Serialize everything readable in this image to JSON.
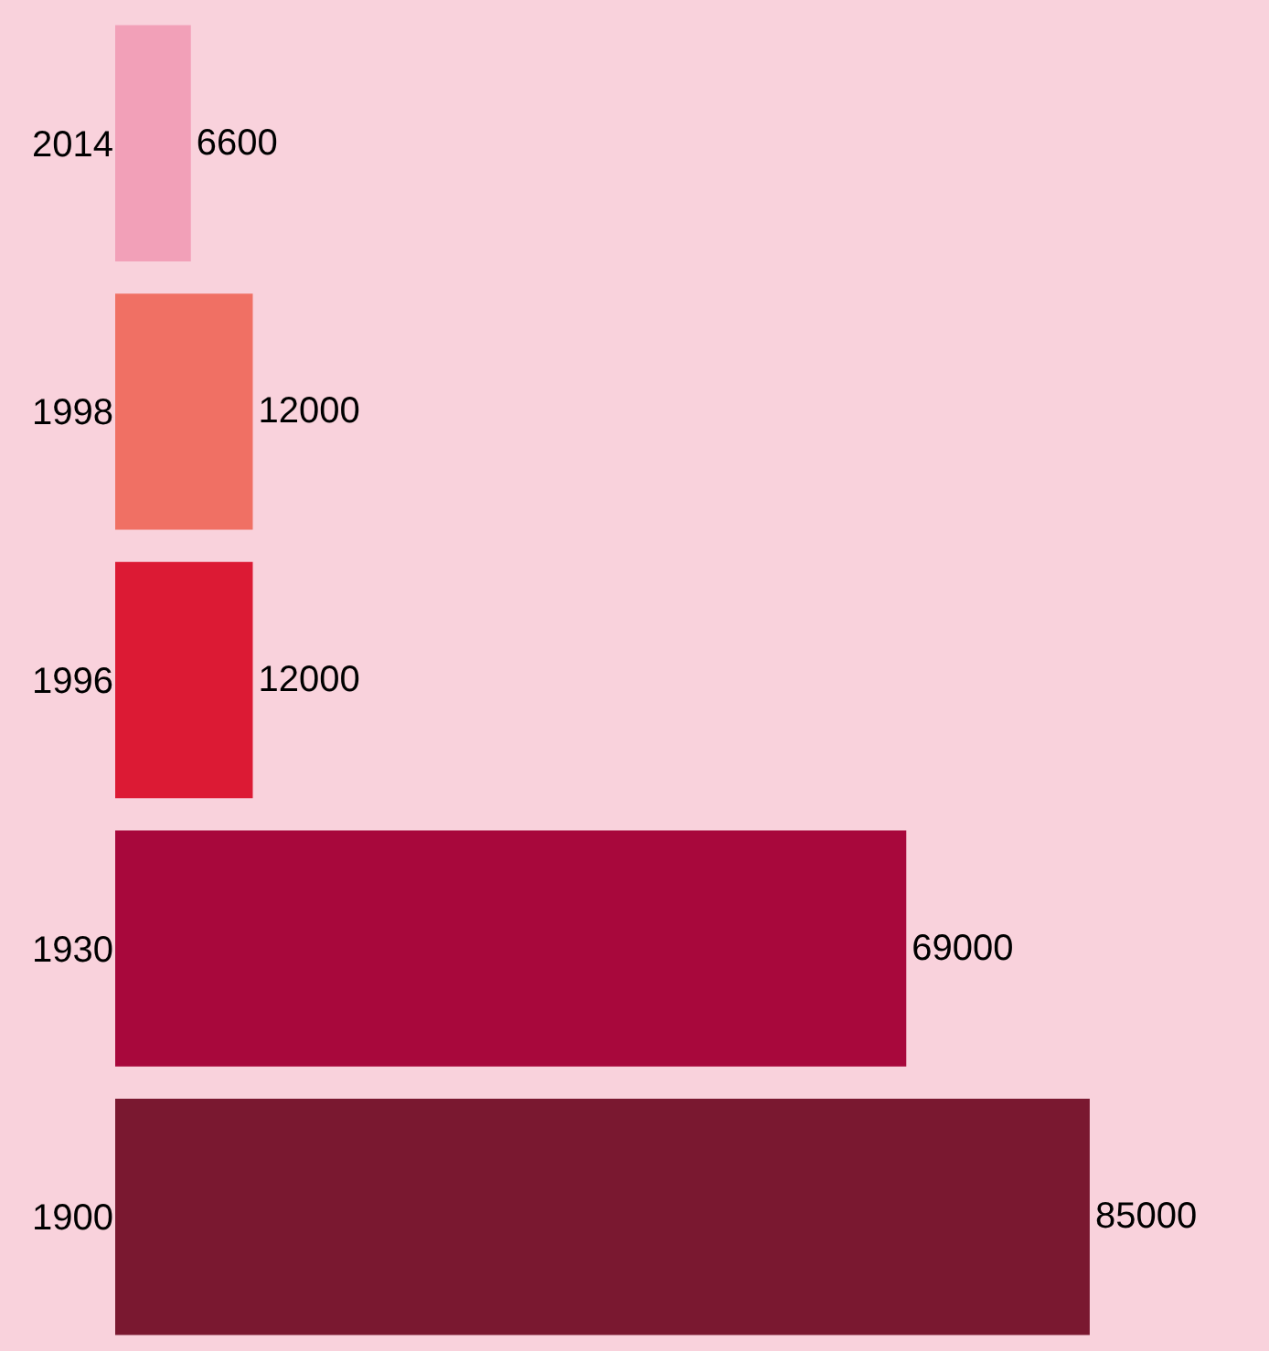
{
  "chart_data": {
    "type": "bar",
    "orientation": "horizontal",
    "categories": [
      "2014",
      "1998",
      "1996",
      "1930",
      "1900"
    ],
    "values": [
      6600,
      12000,
      12000,
      69000,
      85000
    ],
    "colors": [
      "#f2a0b8",
      "#f07064",
      "#dc1a34",
      "#a8083c",
      "#7a1830"
    ],
    "data_labels": true,
    "grid": false,
    "legend": false
  }
}
